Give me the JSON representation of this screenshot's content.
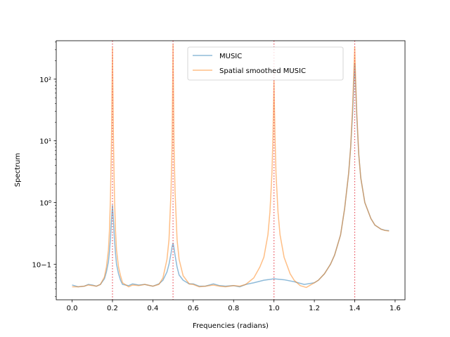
{
  "chart_data": {
    "type": "line",
    "xlabel": "Frequencies (radians)",
    "ylabel": "Spectrum",
    "xlim": [
      -0.0785,
      1.649
    ],
    "ylim": [
      0.0265,
      420
    ],
    "yscale": "log",
    "x_ticks": [
      0.0,
      0.2,
      0.4,
      0.6,
      0.8,
      1.0,
      1.2,
      1.4,
      1.6
    ],
    "x_tick_labels": [
      "0.0",
      "0.2",
      "0.4",
      "0.6",
      "0.8",
      "1.0",
      "1.2",
      "1.4",
      "1.6"
    ],
    "y_ticks": [
      0.1,
      1,
      10,
      100
    ],
    "y_tick_labels": [
      "10−1",
      "10⁰",
      "10¹",
      "10²"
    ],
    "grid": false,
    "legend_position": "upper center",
    "vertical_lines": {
      "x": [
        0.2,
        0.5,
        1.0,
        1.4
      ],
      "color": "#e8505b",
      "style": "dotted"
    },
    "series": [
      {
        "name": "MUSIC",
        "color": "#1f77b4",
        "x": [
          0.0,
          0.03,
          0.06,
          0.08,
          0.1,
          0.12,
          0.14,
          0.16,
          0.17,
          0.18,
          0.185,
          0.19,
          0.195,
          0.2,
          0.205,
          0.21,
          0.215,
          0.22,
          0.23,
          0.24,
          0.25,
          0.28,
          0.3,
          0.33,
          0.36,
          0.4,
          0.43,
          0.45,
          0.47,
          0.48,
          0.49,
          0.495,
          0.5,
          0.505,
          0.51,
          0.52,
          0.53,
          0.55,
          0.58,
          0.6,
          0.63,
          0.66,
          0.7,
          0.73,
          0.76,
          0.8,
          0.83,
          0.86,
          0.9,
          0.95,
          1.0,
          1.05,
          1.1,
          1.15,
          1.2,
          1.22,
          1.25,
          1.28,
          1.3,
          1.33,
          1.35,
          1.37,
          1.38,
          1.39,
          1.395,
          1.4,
          1.405,
          1.41,
          1.42,
          1.43,
          1.45,
          1.48,
          1.5,
          1.53,
          1.55,
          1.57
        ],
        "y": [
          0.046,
          0.043,
          0.044,
          0.047,
          0.046,
          0.044,
          0.047,
          0.058,
          0.075,
          0.11,
          0.16,
          0.26,
          0.52,
          0.9,
          0.5,
          0.25,
          0.15,
          0.1,
          0.07,
          0.055,
          0.047,
          0.045,
          0.048,
          0.046,
          0.047,
          0.044,
          0.048,
          0.055,
          0.075,
          0.1,
          0.15,
          0.19,
          0.22,
          0.18,
          0.14,
          0.09,
          0.067,
          0.055,
          0.048,
          0.048,
          0.044,
          0.044,
          0.048,
          0.045,
          0.044,
          0.045,
          0.043,
          0.047,
          0.05,
          0.055,
          0.058,
          0.056,
          0.052,
          0.047,
          0.05,
          0.055,
          0.07,
          0.1,
          0.14,
          0.3,
          0.8,
          3.0,
          8.0,
          30.0,
          80.0,
          180.0,
          70.0,
          25.0,
          6.0,
          2.5,
          1.0,
          0.55,
          0.43,
          0.37,
          0.355,
          0.35
        ]
      },
      {
        "name": "Spatial smoothed MUSIC",
        "color": "#ff7f0e",
        "x": [
          0.0,
          0.03,
          0.06,
          0.08,
          0.1,
          0.12,
          0.14,
          0.16,
          0.17,
          0.18,
          0.185,
          0.19,
          0.195,
          0.2,
          0.205,
          0.21,
          0.215,
          0.22,
          0.23,
          0.24,
          0.25,
          0.28,
          0.3,
          0.33,
          0.36,
          0.4,
          0.43,
          0.45,
          0.47,
          0.48,
          0.49,
          0.495,
          0.5,
          0.505,
          0.51,
          0.52,
          0.53,
          0.55,
          0.58,
          0.6,
          0.63,
          0.66,
          0.7,
          0.73,
          0.76,
          0.8,
          0.83,
          0.86,
          0.9,
          0.93,
          0.95,
          0.97,
          0.98,
          0.99,
          0.995,
          1.0,
          1.005,
          1.01,
          1.02,
          1.03,
          1.05,
          1.08,
          1.1,
          1.13,
          1.16,
          1.2,
          1.22,
          1.25,
          1.28,
          1.3,
          1.33,
          1.35,
          1.37,
          1.38,
          1.39,
          1.395,
          1.4,
          1.405,
          1.41,
          1.42,
          1.43,
          1.45,
          1.48,
          1.5,
          1.53,
          1.55,
          1.57
        ],
        "y": [
          0.043,
          0.043,
          0.044,
          0.046,
          0.045,
          0.044,
          0.047,
          0.062,
          0.09,
          0.17,
          0.35,
          1.2,
          10.0,
          320.0,
          10.0,
          1.2,
          0.35,
          0.17,
          0.09,
          0.065,
          0.05,
          0.043,
          0.046,
          0.045,
          0.047,
          0.044,
          0.047,
          0.06,
          0.12,
          0.25,
          1.5,
          8.0,
          360.0,
          8.0,
          1.5,
          0.25,
          0.12,
          0.065,
          0.048,
          0.047,
          0.043,
          0.044,
          0.046,
          0.044,
          0.043,
          0.045,
          0.044,
          0.047,
          0.06,
          0.09,
          0.13,
          0.3,
          0.7,
          3.0,
          12.0,
          95.0,
          12.0,
          3.0,
          0.7,
          0.3,
          0.13,
          0.07,
          0.055,
          0.045,
          0.042,
          0.05,
          0.055,
          0.07,
          0.1,
          0.14,
          0.3,
          0.8,
          3.0,
          8.0,
          40.0,
          120.0,
          330.0,
          90.0,
          30.0,
          6.0,
          2.5,
          1.0,
          0.55,
          0.43,
          0.37,
          0.352,
          0.345
        ]
      }
    ]
  }
}
